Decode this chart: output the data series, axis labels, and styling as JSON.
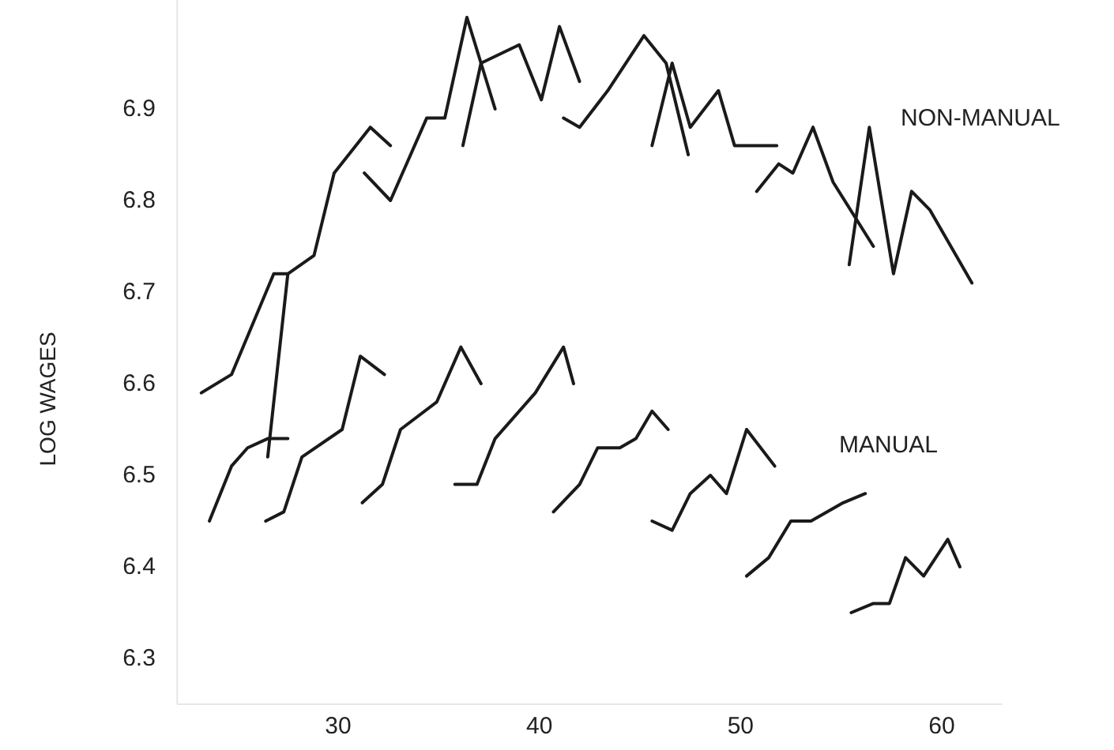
{
  "chart_data": {
    "type": "line",
    "ylabel": "LOG WAGES",
    "xlim": [
      22,
      63
    ],
    "ylim": [
      6.25,
      7.02
    ],
    "xticks": [
      30,
      40,
      50,
      60
    ],
    "yticks": [
      6.3,
      6.4,
      6.5,
      6.6,
      6.7,
      6.8,
      6.9
    ],
    "series": [
      {
        "color": "#1a1a1a",
        "x": [
          23.2,
          24.7,
          26.8,
          27.5
        ],
        "values": [
          6.59,
          6.61,
          6.72,
          6.72
        ]
      },
      {
        "color": "#1a1a1a",
        "x": [
          26.5,
          27.5,
          28.8,
          29.8,
          31.6,
          32.6
        ],
        "values": [
          6.52,
          6.72,
          6.74,
          6.83,
          6.88,
          6.86
        ]
      },
      {
        "color": "#1a1a1a",
        "x": [
          31.3,
          32.6,
          34.4,
          35.3,
          36.4,
          37.8
        ],
        "values": [
          6.83,
          6.8,
          6.89,
          6.89,
          7.0,
          6.9
        ]
      },
      {
        "color": "#1a1a1a",
        "x": [
          36.2,
          37.1,
          39.0,
          40.1,
          41.0,
          42.0
        ],
        "values": [
          6.86,
          6.95,
          6.97,
          6.91,
          6.99,
          6.93
        ]
      },
      {
        "color": "#1a1a1a",
        "x": [
          41.2,
          42.0,
          43.4,
          45.2,
          46.3,
          47.4
        ],
        "values": [
          6.89,
          6.88,
          6.92,
          6.98,
          6.95,
          6.85
        ]
      },
      {
        "color": "#1a1a1a",
        "x": [
          45.6,
          46.6,
          47.5,
          48.9,
          49.7,
          50.9,
          51.8
        ],
        "values": [
          6.86,
          6.95,
          6.88,
          6.92,
          6.86,
          6.86,
          6.86
        ]
      },
      {
        "color": "#1a1a1a",
        "x": [
          50.8,
          51.9,
          52.6,
          53.6,
          54.6,
          56.6
        ],
        "values": [
          6.81,
          6.84,
          6.83,
          6.88,
          6.82,
          6.75
        ]
      },
      {
        "color": "#1a1a1a",
        "x": [
          55.4,
          56.4,
          57.6,
          58.5,
          59.4,
          61.5
        ],
        "values": [
          6.73,
          6.88,
          6.72,
          6.81,
          6.79,
          6.71
        ]
      },
      {
        "color": "#1a1a1a",
        "x": [
          23.6,
          24.7,
          25.5,
          26.5,
          27.5
        ],
        "values": [
          6.45,
          6.51,
          6.53,
          6.54,
          6.54
        ]
      },
      {
        "color": "#1a1a1a",
        "x": [
          26.4,
          27.3,
          28.2,
          30.2,
          31.1,
          32.3
        ],
        "values": [
          6.45,
          6.46,
          6.52,
          6.55,
          6.63,
          6.61
        ]
      },
      {
        "color": "#1a1a1a",
        "x": [
          31.2,
          32.2,
          33.1,
          34.9,
          36.1,
          37.1
        ],
        "values": [
          6.47,
          6.49,
          6.55,
          6.58,
          6.64,
          6.6
        ]
      },
      {
        "color": "#1a1a1a",
        "x": [
          35.8,
          36.9,
          37.8,
          39.8,
          41.2,
          41.7
        ],
        "values": [
          6.49,
          6.49,
          6.54,
          6.59,
          6.64,
          6.6
        ]
      },
      {
        "color": "#1a1a1a",
        "x": [
          40.7,
          42.0,
          42.9,
          44.0,
          44.8,
          45.6,
          46.4
        ],
        "values": [
          6.46,
          6.49,
          6.53,
          6.53,
          6.54,
          6.57,
          6.55
        ]
      },
      {
        "color": "#1a1a1a",
        "x": [
          45.6,
          46.6,
          47.5,
          48.5,
          49.3,
          50.3,
          51.7
        ],
        "values": [
          6.45,
          6.44,
          6.48,
          6.5,
          6.48,
          6.55,
          6.51
        ]
      },
      {
        "color": "#1a1a1a",
        "x": [
          50.3,
          51.4,
          52.5,
          53.5,
          55.1,
          56.2
        ],
        "values": [
          6.39,
          6.41,
          6.45,
          6.45,
          6.47,
          6.48
        ]
      },
      {
        "color": "#1a1a1a",
        "x": [
          55.5,
          56.6,
          57.4,
          58.2,
          59.1,
          60.3,
          60.9
        ],
        "values": [
          6.35,
          6.36,
          6.36,
          6.41,
          6.39,
          6.43,
          6.4
        ]
      }
    ],
    "annotations": [
      "NON-MANUAL",
      "MANUAL"
    ]
  }
}
